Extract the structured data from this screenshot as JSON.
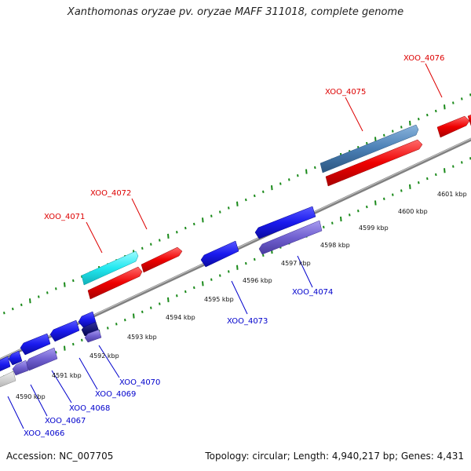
{
  "title": "Xanthomonas oryzae pv. oryzae MAFF 311018, complete genome",
  "accession": "Accession: NC_007705",
  "summary": "Topology: circular; Length: 4,940,217 bp; Genes: 4,431",
  "colors": {
    "forward_gene": "#ee0000",
    "reverse_gene": "#1a1aee",
    "reverse_gene_light": "#7060d0",
    "highlight_gene": "#22e8f0",
    "steel_gene": "#4a7fb5",
    "backbone": "#808080",
    "ticks": "#1a8a1a",
    "forward_label": "#dd0000",
    "reverse_label": "#0000cc"
  },
  "kbp_labels": [
    "4590 kbp",
    "4591 kbp",
    "4592 kbp",
    "4593 kbp",
    "4594 kbp",
    "4595 kbp",
    "4596 kbp",
    "4597 kbp",
    "4598 kbp",
    "4599 kbp",
    "4600 kbp",
    "4601 kbp"
  ],
  "forward_gene_labels": [
    "XOO_4071",
    "XOO_4072",
    "XOO_4075",
    "XOO_4076"
  ],
  "reverse_gene_labels": [
    "XOO_4066",
    "XOO_4067",
    "XOO_4068",
    "XOO_4069",
    "XOO_4070",
    "XOO_4073",
    "XOO_4074"
  ]
}
